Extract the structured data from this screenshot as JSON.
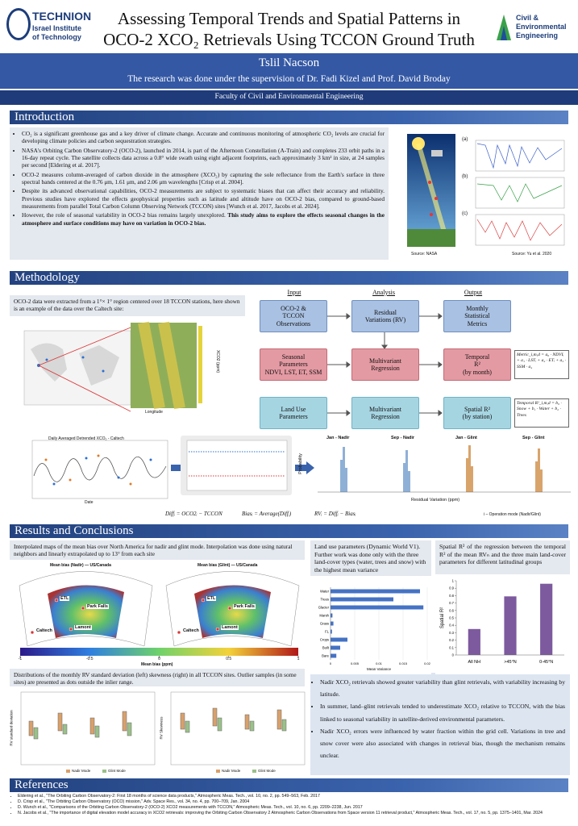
{
  "header": {
    "title_line1": "Assessing Temporal Trends and Spatial Patterns in",
    "title_line2": "OCO-2 XCO₂ Retrievals Using TCCON Ground Truth",
    "logo_left": [
      "TECHNION",
      "Israel Institute",
      "of Technology"
    ],
    "logo_right": [
      "Civil &",
      "Environmental",
      "Engineering"
    ],
    "author": "Tslil Nacson",
    "supervision": "The research was done under the supervision of Dr. Fadi Kizel and Prof. David Broday",
    "faculty": "Faculty of Civil and Environmental Engineering"
  },
  "intro": {
    "heading": "Introduction",
    "bullets": [
      "CO₂ is a significant greenhouse gas and a key driver of climate change. Accurate and continuous monitoring of atmospheric CO₂ levels are crucial for developing climate policies and carbon sequestration strategies.",
      "NASA's Orbiting Carbon Observatory-2 (OCO-2), launched in 2014, is part of the Afternoon Constellation (A-Train) and completes 233 orbit paths in a 16-day repeat cycle. The satellite collects data across a 0.8° wide swath using eight adjacent footprints, each approximately 3 km² in size, at 24 samples per second [Eldering et al. 2017].",
      "OCO-2 measures column-averaged of carbon dioxide in the atmosphere (XCO₂) by capturing the sole reflectance from the Earth's surface in three spectral bands centered at the 0.76 μm, 1.61 μm, and 2.06 μm wavelengths [Crisp et al. 2004].",
      "Despite its advanced observational capabilities, OCO-2 measurements are subject to systematic biases that can affect their accuracy and reliability. Previous studies have explored the effects geophysical properties such as latitude and altitude have on OCO-2 bias, compared to ground-based measurements from parallel Total Carbon Column Observing Network (TCCON) sites [Wunch et al. 2017, Jacobs et al. 2024]."
    ],
    "last_bullet": {
      "text": "However, the role of seasonal variability in OCO-2 bias remains largely unexplored. ",
      "bold": "This study aims to explore the effects seasonal changes in the atmosphere and surface conditions may have on variation in OCO-2 bias."
    },
    "panels": [
      "(a)",
      "(b)",
      "(c)"
    ],
    "source_left": "Source: NASA",
    "source_right": "Source: Yu et al. 2020"
  },
  "methods": {
    "heading": "Methodology",
    "text": "OCO-2 data were extracted from a  1°× 1° region centered over 18 TCCON stations, here shown is an example of the data over the Caltech site:",
    "flow_headers": [
      "Input",
      "Analysis",
      "Output"
    ],
    "flow_boxes": [
      "OCO-2 &\nTCCON\nObservations",
      "Residual\nVariations (RV)",
      "Monthly\nStatistical\nMetrics",
      "Seasonal\nParameters\nNDVI, LST, ET, SSM",
      "Multivariant\nRegression",
      "Temporal\nR²\n(by month)",
      "Land Use\nParameters",
      "Multivariant\nRegression",
      "Spatial R²\n(by station)"
    ],
    "eq_temporal": "Metric_i,m,d = a₀ · NDVIᵢ + a₁ · LSTᵢ + a₂ · ETᵢ + a₃ · SSM · a₄",
    "eq_spatial": "Temporal R²_i,m,d = b₀ · Snow + b₁ · Water + b₂ · Trees",
    "map_axis": "Longitude",
    "tile_label": "XCO2 (ppm)",
    "ts_title": "Daily Averaged Detrended XCO₂ - Caltech",
    "ts_xlabel": "Date",
    "hist_titles": [
      "Jan - Nadir",
      "Sep - Nadir",
      "Jan - Glint",
      "Sep - Glint"
    ],
    "hist_ylabel": "Probability",
    "hist_xlabel": "Residual Variation (ppm)",
    "formulas": [
      "Diffᵢ = OCO2ᵢ − TCCON",
      "Biasᵢ = Average(Diffᵢ)",
      "RVᵢ = Diffᵢ − Biasᵢ"
    ],
    "note": "i   – Operation mode (Nadir/Glint)"
  },
  "results": {
    "heading": "Results and Conclusions",
    "maps_text": "Interpolated maps of the mean bias over North America for nadir and glint mode. Interpolation was done  using natural neighbors and linearly extrapolated up to 13° from each site",
    "map_titles": [
      "Mean bias (Nadir) — US/Canada",
      "Mean bias (Glint) — US/Canada"
    ],
    "sites": [
      "ETL",
      "Park Falls",
      "Caltech",
      "Lamont"
    ],
    "colorbar_ticks": [
      -1,
      -0.5,
      0,
      0.5,
      1
    ],
    "colorbar_label": "Mean bias (ppm)",
    "landuse_text": "Land use parameters (Dynamic World V1). Further work was done only with the three land-cover types (water, trees and snow) with the highest mean variance",
    "r2_text": "Spatial R² of the regression between the temporal R² of the mean RVₙ and the three main land-cover parameters for different latitudinal groups",
    "dist_text": "Distributions of the monthly RV standard deviation (left) skewness (right) in all TCCON sites. Outlier samples (in some sites) are presented as dots outside the inlier range.",
    "box_ylabels": [
      "RV standard deviation",
      "RV Skewness"
    ],
    "box_legend": [
      "Nadir Mode",
      "Glint Mode"
    ],
    "conclusions": [
      "Nadir XCO₂ retrievals showed greater variability than glint retrievals, with variability increasing by latitude.",
      "In summer, land–glint retrievals tended to underestimate XCO₂ relative to TCCON, with the bias linked to seasonal variability in satellite-derived environmental parameters.",
      "Nadir XCO₂ errors were influenced by water fraction within the grid cell. Variations in tree and snow cover were also associated with changes in retrieval bias, though the mechanism remains unclear."
    ]
  },
  "references": {
    "heading": "References",
    "items": [
      "Eldering et al., \"The Orbiting Carbon Observatory-2: First 18 months of science data products,\" Atmospheric Meas. Tech., vol. 10, no. 2, pp. 549–563, Feb. 2017",
      "D. Crisp et al., \"The Orbiting Carbon Observatory (OCO) mission,\" Adv. Space Res., vol. 34, no. 4, pp. 700–709, Jan. 2004",
      "D. Wunch et al., \"Comparisons of the Orbiting Carbon Observatory-2 (OCO-2) XCO2 measurements with TCCON,\" Atmospheric Meas. Tech., vol. 10, no. 6, pp. 2209–2238, Jun. 2017",
      "N. Jacobs et al., \"The importance of digital elevation model accuracy in XCO2 retrievals: improving the Orbiting Carbon Observatory 2 Atmospheric Carbon Observations from Space version 11 retrieval product,\" Atmospheric Meas. Tech., vol. 17, no. 5, pp. 1375–1401, Mar. 2024"
    ]
  },
  "chart_data": [
    {
      "type": "bar",
      "orientation": "horizontal",
      "xlabel": "Mean Variance",
      "categories": [
        "Water",
        "Trees",
        "Glacier",
        "Marsh",
        "Grass",
        "FL",
        "Crops",
        "Built",
        "Bare"
      ],
      "values": [
        0.0185,
        0.013,
        0.0192,
        0.0004,
        0.0006,
        0.0003,
        0.0035,
        0.002,
        0.0012
      ],
      "color": "#4472c4",
      "xlim": [
        0,
        0.02
      ],
      "xticks": [
        0,
        0.005,
        0.01,
        0.015,
        0.02
      ]
    },
    {
      "type": "bar",
      "ylabel": "Spatial R²",
      "categories": [
        "All NH",
        ">45°N",
        "0-45°N"
      ],
      "values": [
        0.35,
        0.79,
        0.96
      ],
      "color": "#7d5a9e",
      "ylim": [
        0,
        1
      ],
      "yticks": [
        0,
        0.1,
        0.2,
        0.3,
        0.4,
        0.5,
        0.6,
        0.7,
        0.8,
        0.9,
        1
      ]
    }
  ]
}
